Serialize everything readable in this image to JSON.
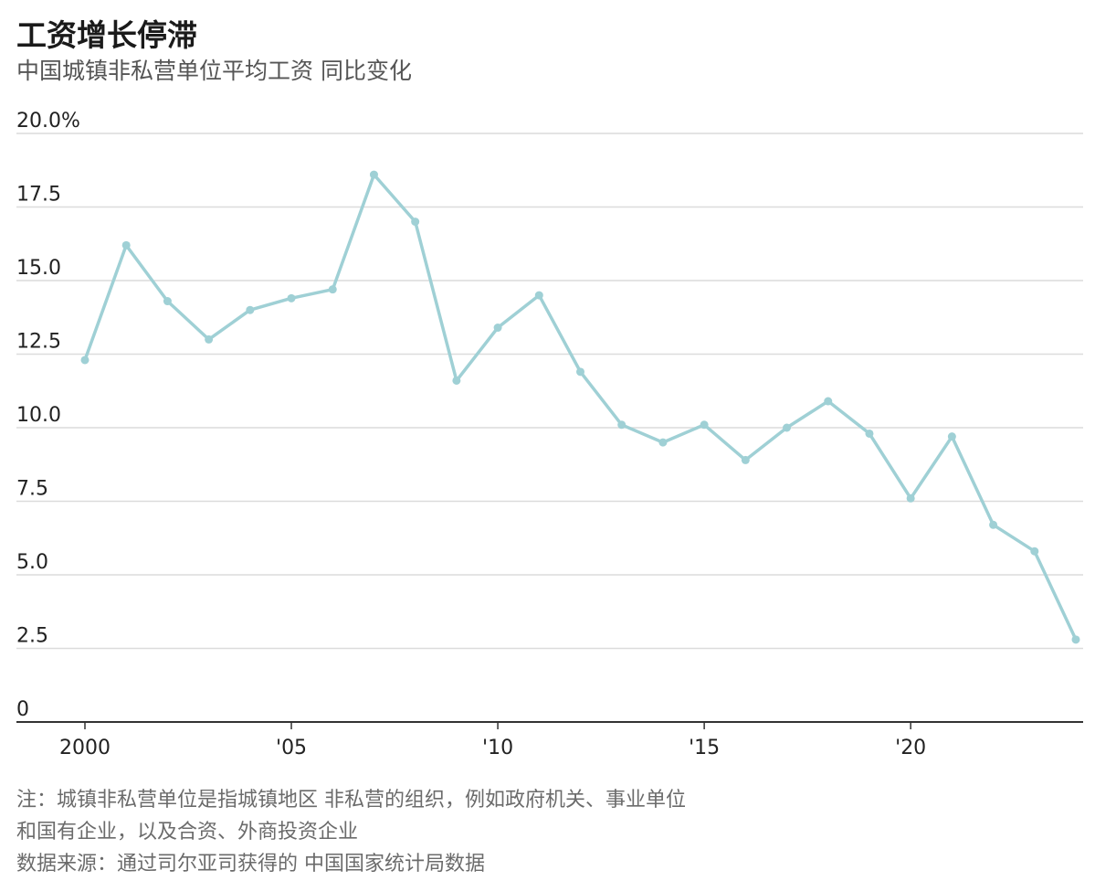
{
  "header": {
    "title": "工资增长停滞",
    "subtitle": "中国城镇非私营单位平均工资 同比变化"
  },
  "footer": {
    "note_line1": "注：城镇非私营单位是指城镇地区 非私营的组织，例如政府机关、事业单位",
    "note_line2": "和国有企业，以及合资、外商投资企业",
    "source": "数据来源：通过司尔亚司获得的 中国国家统计局数据"
  },
  "colors": {
    "line": "#9fd0d5",
    "grid": "#dcdcdc",
    "axis": "#333333",
    "text": "#222222"
  },
  "chart_data": {
    "type": "line",
    "title": "工资增长停滞",
    "subtitle": "中国城镇非私营单位平均工资 同比变化",
    "x": [
      2000,
      2001,
      2002,
      2003,
      2004,
      2005,
      2006,
      2007,
      2008,
      2009,
      2010,
      2011,
      2012,
      2013,
      2014,
      2015,
      2016,
      2017,
      2018,
      2019,
      2020,
      2021,
      2022,
      2023,
      2024
    ],
    "series": [
      {
        "values": [
          12.3,
          16.2,
          14.3,
          13.0,
          14.0,
          14.4,
          14.7,
          18.6,
          17.0,
          11.6,
          13.4,
          14.5,
          11.9,
          10.1,
          9.5,
          10.1,
          8.9,
          10.0,
          10.9,
          9.8,
          7.6,
          9.7,
          6.7,
          5.8,
          2.8
        ]
      }
    ],
    "xlim": [
      2000,
      2024
    ],
    "ylim": [
      0,
      20
    ],
    "y_ticks": [
      0,
      2.5,
      5,
      7.5,
      10,
      12.5,
      15,
      17.5,
      20
    ],
    "y_tick_labels": [
      "0",
      "2.5",
      "5.0",
      "7.5",
      "10.0",
      "12.5",
      "15.0",
      "17.5",
      "20.0%"
    ],
    "x_ticks": [
      2000,
      2005,
      2010,
      2015,
      2020
    ],
    "x_tick_labels": [
      "2000",
      "'05",
      "'10",
      "'15",
      "'20"
    ],
    "grid": true,
    "legend": "none"
  }
}
